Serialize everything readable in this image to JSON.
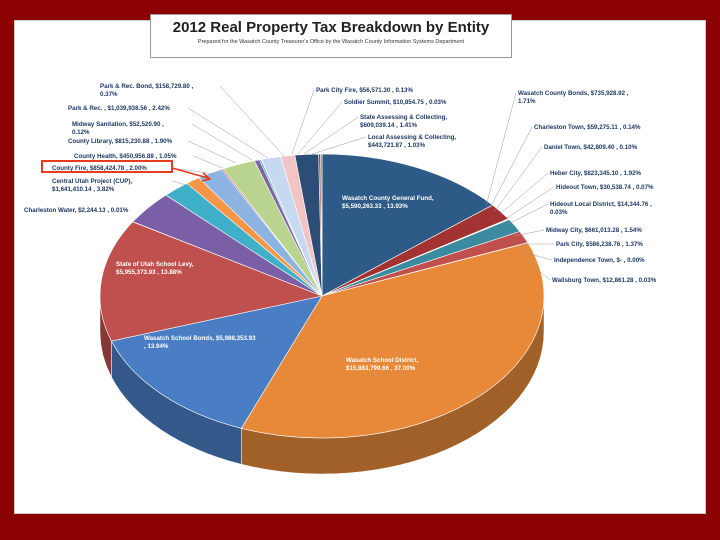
{
  "chart_data": {
    "type": "pie",
    "title": "2012 Real Property Tax Breakdown by Entity",
    "subtitle": "Prepared for the Wasatch County Treasurer's Office by the Wasatch County Information Systems Department",
    "slices": [
      {
        "label": "Wasatch County General Fund, $5,590,263.33 , 13.93%",
        "value": 13.93,
        "color": "#2e5a87"
      },
      {
        "label": "Heber City, $823,345.10 , 1.92%",
        "value": 1.92,
        "color": "#a33333"
      },
      {
        "label": "Hideout Town, $30,538.74 , 0.07%",
        "value": 0.07,
        "color": "#5d8a3a"
      },
      {
        "label": "Hideout Local District, $14,344.76 , 0.03%",
        "value": 0.03,
        "color": "#7a5a9a"
      },
      {
        "label": "Midway City, $661,013.28 , 1.54%",
        "value": 1.54,
        "color": "#3a8aa0"
      },
      {
        "label": "Park City, $586,238.76 , 1.37%",
        "value": 1.37,
        "color": "#c0504d"
      },
      {
        "label": "Independence Town, $- , 0.00%",
        "value": 0.0,
        "color": "#888888"
      },
      {
        "label": "Wallsburg Town, $12,861.28 , 0.03%",
        "value": 0.03,
        "color": "#8fb050"
      },
      {
        "label": "Wasatch School District, $15,883,799.66 , 37.00%",
        "value": 37.0,
        "color": "#e8893a"
      },
      {
        "label": "Wasatch School Bonds, $5,988,353.93 , 13.94%",
        "value": 13.94,
        "color": "#4a7ec4"
      },
      {
        "label": "State of Utah School Levy, $5,955,373.93 , 13.88%",
        "value": 13.88,
        "color": "#c0504d"
      },
      {
        "label": "Charleston Water, $2,244.13 , 0.01%",
        "value": 0.01,
        "color": "#9bbb59"
      },
      {
        "label": "Central Utah Project (CUP), $1,641,410.14 , 3.82%",
        "value": 3.82,
        "color": "#7b5fa6"
      },
      {
        "label": "County Fire, $858,424.78 , 2.00%",
        "value": 2.0,
        "color": "#3fb0c8"
      },
      {
        "label": "County Health, $450,956.88 , 1.05%",
        "value": 1.05,
        "color": "#f79646"
      },
      {
        "label": "County Library, $815,230.88 , 1.90%",
        "value": 1.9,
        "color": "#8db3e2"
      },
      {
        "label": "Midway Sanitation, $52,520.90 , 0.12%",
        "value": 0.12,
        "color": "#c3504d"
      },
      {
        "label": "Park & Rec. , $1,039,938.56 , 2.42%",
        "value": 2.42,
        "color": "#b8d48e"
      },
      {
        "label": "Park & Rec. Bond, $158,729.80 , 0.37%",
        "value": 0.37,
        "color": "#8064a2"
      },
      {
        "label": "Park City Fire, $56,571.30 , 0.13%",
        "value": 0.13,
        "color": "#4bacc6"
      },
      {
        "label": "Soldier Summit, $10,854.75 , 0.03%",
        "value": 0.03,
        "color": "#f3a35c"
      },
      {
        "label": "State Assessing & Collecting, $609,039.14 , 1.41%",
        "value": 1.41,
        "color": "#c6d9f1"
      },
      {
        "label": "Local Assessing & Collecting, $443,721.87 , 1.03%",
        "value": 1.03,
        "color": "#f2c4c4"
      },
      {
        "label": "Wasatch County Bonds, $735,928.92 , 1.71%",
        "value": 1.71,
        "color": "#2c4d75"
      },
      {
        "label": "Charleston Town, $59,275.11 , 0.14%",
        "value": 0.14,
        "color": "#9a3b3b"
      },
      {
        "label": "Daniel Town, $42,809.40 , 0.10%",
        "value": 0.1,
        "color": "#6a8a3a"
      }
    ],
    "outside_labels_left": [
      {
        "text": "Park & Rec. Bond, $158,729.80 ,",
        "text2": "0.37%"
      },
      {
        "text": "Park & Rec. , $1,039,938.56 , 2.42%",
        "text2": ""
      },
      {
        "text": "Midway Sanitation, $52,520.90 ,",
        "text2": "0.12%"
      },
      {
        "text": "County Library, $815,230.88 , 1.90%",
        "text2": ""
      },
      {
        "text": "County Health, $450,956.88 , 1.05%",
        "text2": ""
      },
      {
        "text": "County Fire, $858,424.78 , 2.00%",
        "text2": ""
      },
      {
        "text": "Central Utah Project (CUP),",
        "text2": "$1,641,410.14 , 3.82%"
      },
      {
        "text": "Charleston Water, $2,244.13 , 0.01%",
        "text2": ""
      }
    ],
    "outside_labels_top": [
      {
        "text": "Park City Fire, $56,571.30 , 0.13%",
        "text2": ""
      },
      {
        "text": "Soldier Summit, $10,854.75 , 0.03%",
        "text2": ""
      },
      {
        "text": "State Assessing & Collecting,",
        "text2": "$609,039.14 , 1.41%"
      },
      {
        "text": "Local Assessing & Collecting,",
        "text2": "$443,721.87 , 1.03%"
      }
    ],
    "outside_labels_right": [
      {
        "text": "Wasatch County Bonds, $735,928.92 ,",
        "text2": "1.71%"
      },
      {
        "text": "Charleston Town, $59,275.11 , 0.14%",
        "text2": ""
      },
      {
        "text": "Daniel Town, $42,809.40 , 0.10%",
        "text2": ""
      },
      {
        "text": "Heber City, $823,345.10 , 1.92%",
        "text2": ""
      },
      {
        "text": "Hideout Town, $30,538.74 , 0.07%",
        "text2": ""
      },
      {
        "text": "Hideout Local District, $14,344.76 ,",
        "text2": "0.03%"
      },
      {
        "text": "Midway City, $661,013.28 , 1.54%",
        "text2": ""
      },
      {
        "text": "Park City, $586,238.76 , 1.37%",
        "text2": ""
      },
      {
        "text": "Independence Town, $- , 0.00%",
        "text2": ""
      },
      {
        "text": "Wallsburg Town, $12,861.28 , 0.03%",
        "text2": ""
      }
    ],
    "inside_labels": [
      {
        "text": "Wasatch County General Fund,",
        "text2": "$5,590,263.33 , 13.93%"
      },
      {
        "text": "State of Utah School Levy,",
        "text2": "$5,955,373.93 , 13.88%"
      },
      {
        "text": "Wasatch School Bonds, $5,988,353.93",
        "text2": ", 13.94%"
      },
      {
        "text": "Wasatch School District,",
        "text2": "$15,883,799.66 , 37.00%"
      }
    ],
    "highlight_color": "#e53b1e",
    "legend": "none"
  }
}
